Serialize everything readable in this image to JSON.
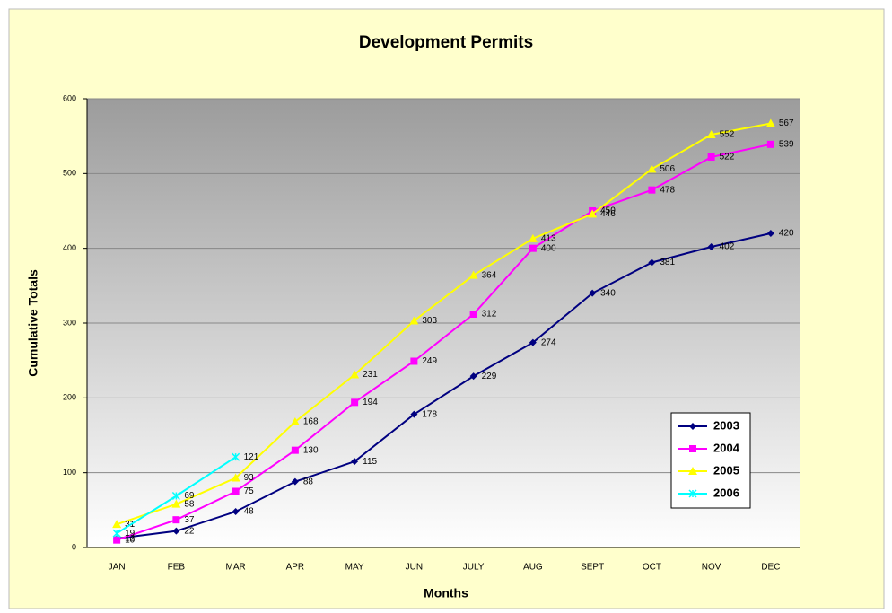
{
  "chart_data": {
    "type": "line",
    "title": "Development Permits",
    "xlabel": "Months",
    "ylabel": "Cumulative Totals",
    "categories": [
      "JAN",
      "FEB",
      "MAR",
      "APR",
      "MAY",
      "JUN",
      "JULY",
      "AUG",
      "SEPT",
      "OCT",
      "NOV",
      "DEC"
    ],
    "series": [
      {
        "name": "2003",
        "color": "#000080",
        "marker": "diamond",
        "values": [
          12,
          22,
          48,
          88,
          115,
          178,
          229,
          274,
          340,
          381,
          402,
          420
        ]
      },
      {
        "name": "2004",
        "color": "#ff00ff",
        "marker": "square",
        "values": [
          10,
          37,
          75,
          130,
          194,
          249,
          312,
          400,
          450,
          478,
          522,
          539
        ]
      },
      {
        "name": "2005",
        "color": "#ffff00",
        "marker": "triangle",
        "values": [
          31,
          58,
          93,
          168,
          231,
          303,
          364,
          413,
          446,
          506,
          552,
          567
        ]
      },
      {
        "name": "2006",
        "color": "#00ffff",
        "marker": "cross",
        "values": [
          19,
          69,
          121,
          null,
          null,
          null,
          null,
          null,
          null,
          null,
          null,
          null
        ]
      }
    ],
    "ylim": [
      0,
      600
    ],
    "yticks": [
      0,
      100,
      200,
      300,
      400,
      500,
      600
    ],
    "grid": true,
    "legend": "lower right"
  }
}
